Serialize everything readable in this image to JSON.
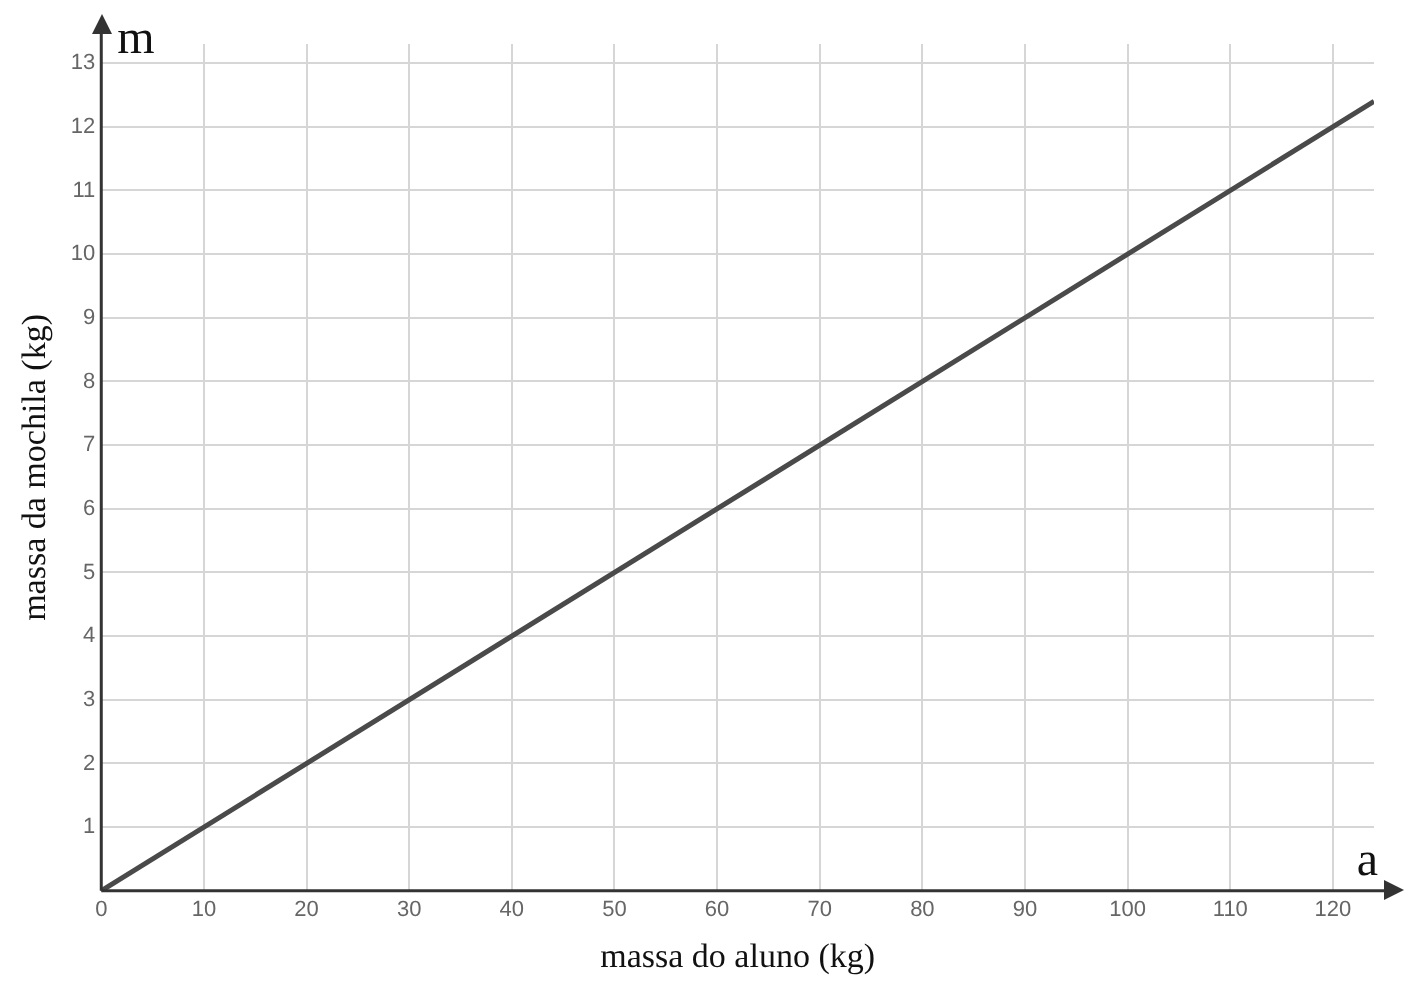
{
  "chart_data": {
    "type": "line",
    "xlabel": "massa do aluno (kg)",
    "ylabel": "massa da mochila (kg)",
    "annotations": [
      "m",
      "a"
    ],
    "series": [
      {
        "color": "#4a4a4a",
        "x": [
          0,
          124
        ],
        "values": [
          0,
          12.4
        ]
      }
    ],
    "xlim": [
      0,
      124
    ],
    "xticks": [
      0,
      10,
      20,
      30,
      40,
      50,
      60,
      70,
      80,
      90,
      100,
      110,
      120
    ],
    "ylim": [
      0,
      13.3
    ],
    "yticks": [
      {
        "value": 0,
        "label": null
      },
      1,
      2,
      3,
      4,
      5,
      6,
      7,
      8,
      9,
      10,
      11,
      12,
      13
    ],
    "grid": true,
    "legend": false,
    "marker": "none",
    "line_style": "solid"
  }
}
